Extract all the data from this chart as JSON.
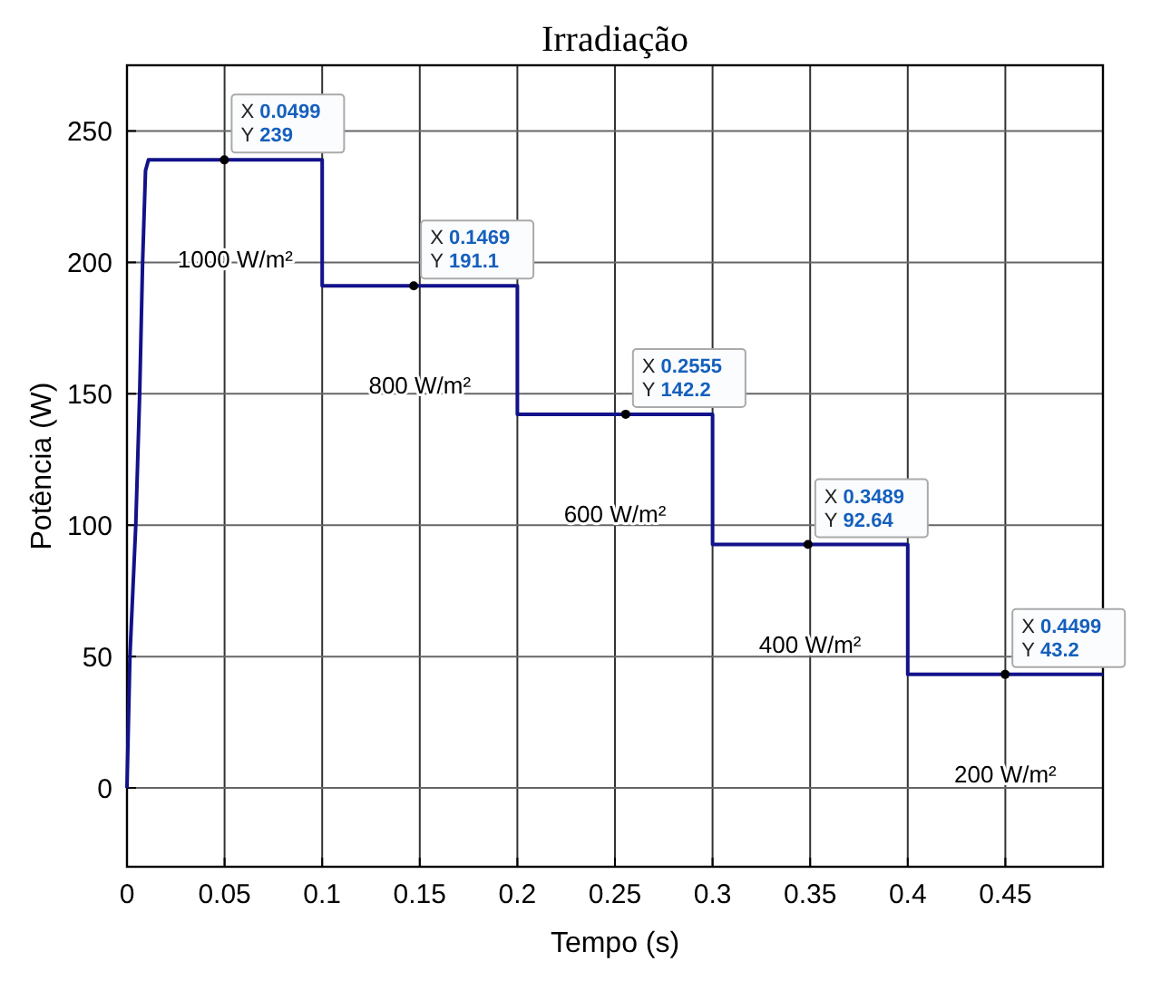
{
  "chart_data": {
    "type": "line",
    "title": "Irradiação",
    "xlabel": "Tempo (s)",
    "ylabel": "Potência (W)",
    "xlim": [
      0,
      0.5
    ],
    "xticks": [
      0,
      0.05,
      0.1,
      0.15,
      0.2,
      0.25,
      0.3,
      0.35,
      0.4,
      0.45
    ],
    "ylim": [
      -30,
      275
    ],
    "yticks": [
      0,
      50,
      100,
      150,
      200,
      250
    ],
    "grid": true,
    "series": [
      {
        "color": "#12128a",
        "x": [
          0,
          0.0015,
          0.0045,
          0.0065,
          0.008,
          0.0095,
          0.011,
          0.1,
          0.1,
          0.2,
          0.2,
          0.3,
          0.3,
          0.4,
          0.4,
          0.5
        ],
        "values": [
          0,
          50,
          100,
          150,
          200,
          235,
          239,
          239,
          191.1,
          191.1,
          142.2,
          142.2,
          92.64,
          92.64,
          43.2,
          43.2
        ]
      }
    ],
    "annotations": [
      {
        "text": "X 0.0499\nY 239",
        "x": 0.0499,
        "y": 239
      },
      {
        "text": "X 0.1469\nY 191.1",
        "x": 0.1469,
        "y": 191.1
      },
      {
        "text": "X 0.2555\nY 142.2",
        "x": 0.2555,
        "y": 142.2
      },
      {
        "text": "X 0.3489\nY 92.64",
        "x": 0.3489,
        "y": 92.64
      },
      {
        "text": "X 0.4499\nY 43.2",
        "x": 0.4499,
        "y": 43.2
      },
      "1000 W/m²",
      "800 W/m²",
      "600 W/m²",
      "400 W/m²",
      "200 W/m²"
    ]
  }
}
